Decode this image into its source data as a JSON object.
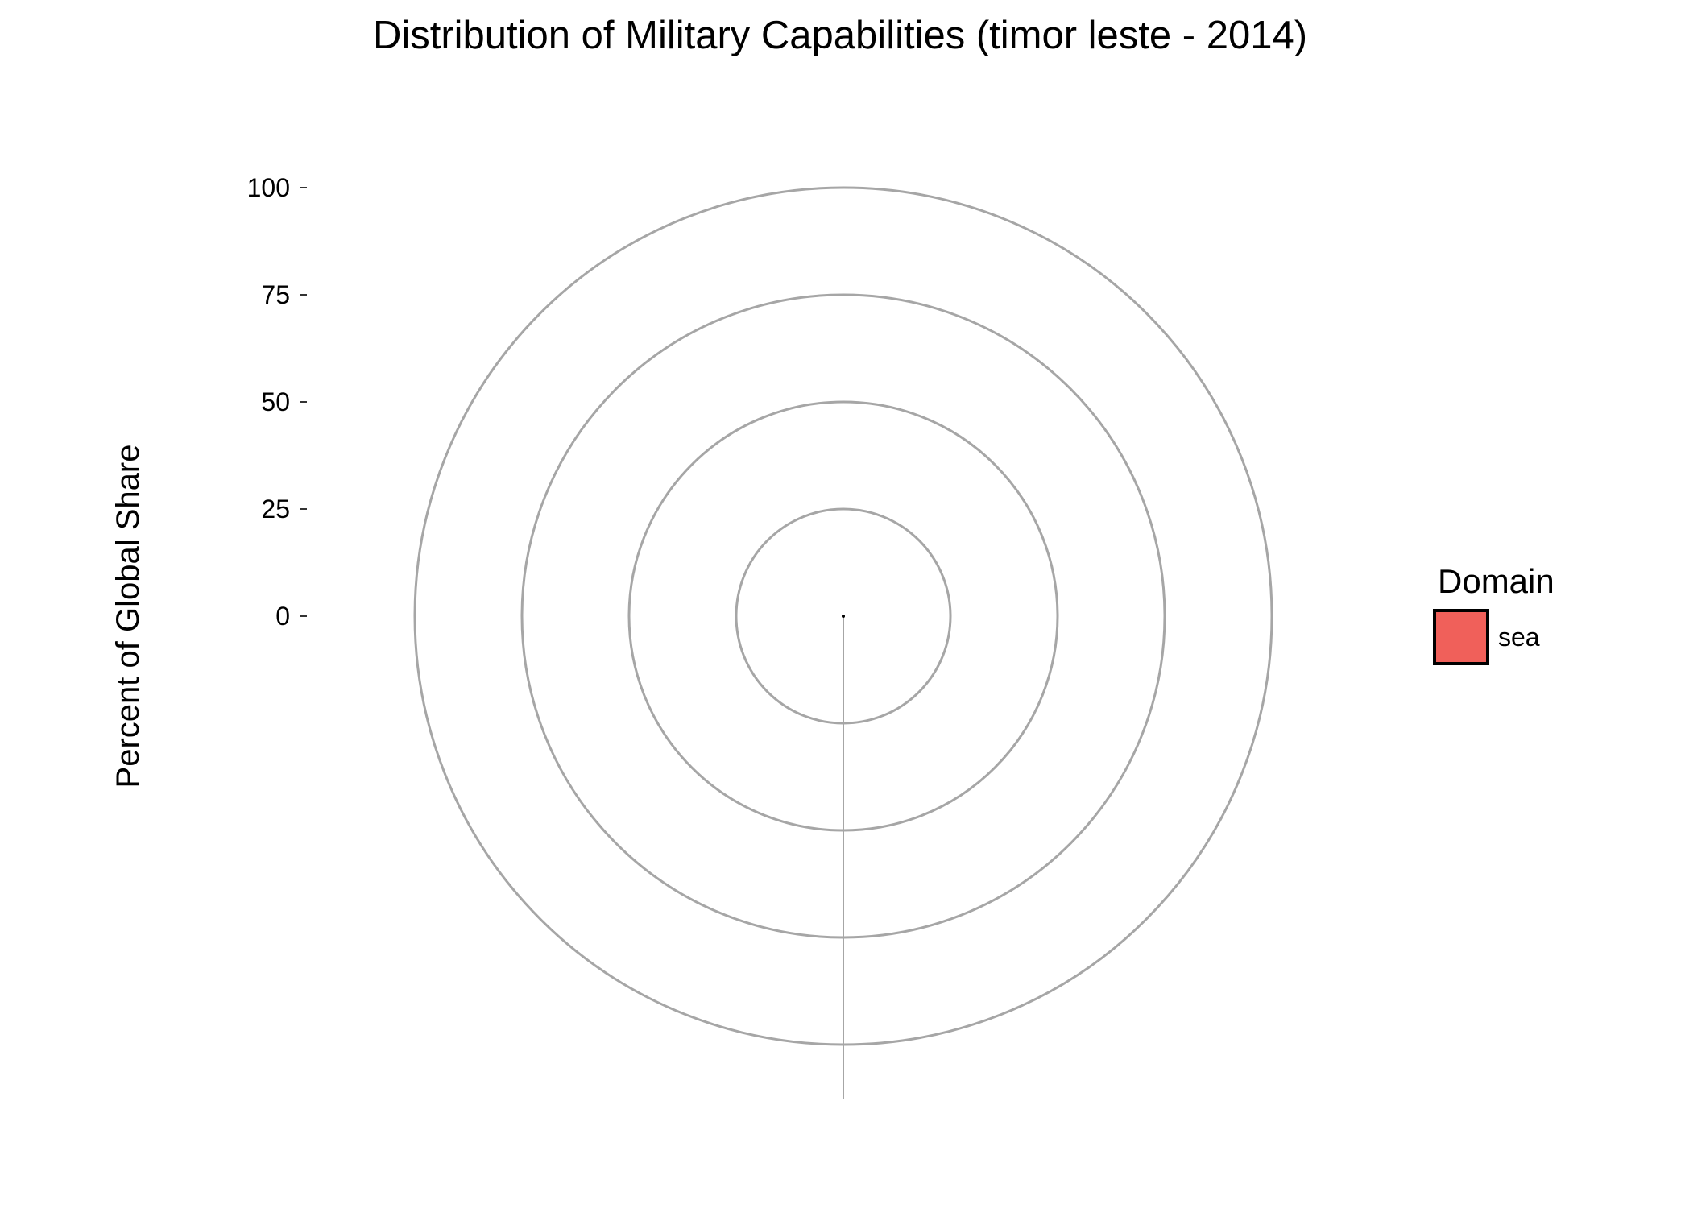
{
  "chart_data": {
    "type": "pie",
    "coord": "polar",
    "title": "Distribution of Military Capabilities (timor leste - 2014)",
    "xlabel": "",
    "ylabel": "Percent of Global Share",
    "ylim": [
      0,
      100
    ],
    "yticks": [
      0,
      25,
      50,
      75,
      100
    ],
    "ytick_labels": [
      "0",
      "25",
      "50",
      "75",
      "100"
    ],
    "grid": true,
    "grid_color": "#a6a6a6",
    "categories": [
      "sea"
    ],
    "values": [
      0
    ],
    "series_colors": [
      "#f0605a"
    ],
    "legend": {
      "title": "Domain",
      "position": "right",
      "entries": [
        {
          "label": "sea",
          "color": "#f0605a"
        }
      ]
    }
  }
}
